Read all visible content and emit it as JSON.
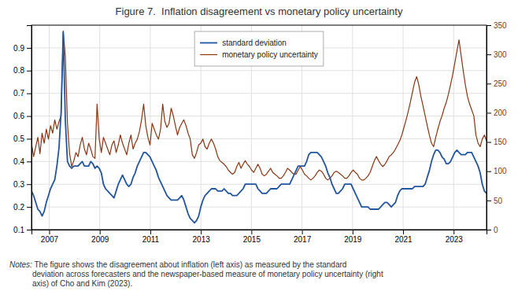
{
  "chart_data": {
    "type": "line",
    "title": "Figure 7.  Inflation disagreement vs monetary policy uncertainty",
    "x": [
      2006.3,
      2006.3837,
      2006.4674,
      2006.5512,
      2006.6349,
      2006.7186,
      2006.8023,
      2006.886,
      2006.9698,
      2007.0535,
      2007.1372,
      2007.2209,
      2007.3047,
      2007.3884,
      2007.4721,
      2007.5558,
      2007.6395,
      2007.7233,
      2007.807,
      2007.8907,
      2007.9744,
      2008.0581,
      2008.1419,
      2008.2256,
      2008.3093,
      2008.393,
      2008.4767,
      2008.5605,
      2008.6442,
      2008.7279,
      2008.8116,
      2008.8953,
      2008.9791,
      2009.0628,
      2009.1465,
      2009.2302,
      2009.314,
      2009.3977,
      2009.4814,
      2009.5651,
      2009.6488,
      2009.7326,
      2009.8163,
      2009.9,
      2009.9837,
      2010.0674,
      2010.1512,
      2010.2349,
      2010.3186,
      2010.4023,
      2010.486,
      2010.5698,
      2010.6535,
      2010.7372,
      2010.8209,
      2010.9047,
      2010.9884,
      2011.0721,
      2011.1558,
      2011.2395,
      2011.3233,
      2011.407,
      2011.4907,
      2011.5744,
      2011.6581,
      2011.7419,
      2011.8256,
      2011.9093,
      2011.993,
      2012.0767,
      2012.1605,
      2012.2442,
      2012.3279,
      2012.4116,
      2012.4953,
      2012.5791,
      2012.6628,
      2012.7465,
      2012.8302,
      2012.914,
      2012.9977,
      2013.0814,
      2013.1651,
      2013.2488,
      2013.3326,
      2013.4163,
      2013.5,
      2013.5837,
      2013.6674,
      2013.7512,
      2013.8349,
      2013.9186,
      2014.0023,
      2014.086,
      2014.1698,
      2014.2535,
      2014.3372,
      2014.4209,
      2014.5047,
      2014.5884,
      2014.6721,
      2014.7558,
      2014.8395,
      2014.9233,
      2015.007,
      2015.0907,
      2015.1744,
      2015.2581,
      2015.3419,
      2015.4256,
      2015.5093,
      2015.593,
      2015.6767,
      2015.7605,
      2015.8442,
      2015.9279,
      2016.0116,
      2016.0953,
      2016.1791,
      2016.2628,
      2016.3465,
      2016.4302,
      2016.514,
      2016.5977,
      2016.6814,
      2016.7651,
      2016.8488,
      2016.9326,
      2017.0163,
      2017.1,
      2017.1837,
      2017.2674,
      2017.3512,
      2017.4349,
      2017.5186,
      2017.6023,
      2017.686,
      2017.7698,
      2017.8535,
      2017.9372,
      2018.0209,
      2018.1047,
      2018.1884,
      2018.2721,
      2018.3558,
      2018.4395,
      2018.5233,
      2018.607,
      2018.6907,
      2018.7744,
      2018.8581,
      2018.9419,
      2019.0256,
      2019.1093,
      2019.193,
      2019.2767,
      2019.3605,
      2019.4442,
      2019.5279,
      2019.6116,
      2019.6953,
      2019.7791,
      2019.8628,
      2019.9465,
      2020.0302,
      2020.114,
      2020.1977,
      2020.2814,
      2020.3651,
      2020.4488,
      2020.5326,
      2020.6163,
      2020.7,
      2020.7837,
      2020.8674,
      2020.9512,
      2021.0349,
      2021.1186,
      2021.2023,
      2021.286,
      2021.3698,
      2021.4535,
      2021.5372,
      2021.6209,
      2021.7047,
      2021.7884,
      2021.8721,
      2021.9558,
      2022.0395,
      2022.1233,
      2022.207,
      2022.2907,
      2022.3744,
      2022.4581,
      2022.5419,
      2022.6256,
      2022.7093,
      2022.793,
      2022.8767,
      2022.9605,
      2023.0442,
      2023.1279,
      2023.2116,
      2023.2953,
      2023.3791,
      2023.4628,
      2023.5465,
      2023.6302,
      2023.714,
      2023.7977,
      2023.8814,
      2023.9651,
      2024.0488,
      2024.1326,
      2024.2163,
      2024.3
    ],
    "xlim": [
      2006.3,
      2024.3
    ],
    "xticks": [
      2007,
      2009,
      2011,
      2013,
      2015,
      2017,
      2019,
      2021,
      2023
    ],
    "ylim": [
      0.1,
      1.0
    ],
    "yticks": [
      0.1,
      0.2,
      0.3,
      0.4,
      0.5,
      0.6,
      0.7,
      0.8,
      0.9
    ],
    "y2lim": [
      0,
      350
    ],
    "y2ticks": [
      0,
      50,
      100,
      150,
      200,
      250,
      300,
      350
    ],
    "series": [
      {
        "name": "standard deviation",
        "color": "#2255a0",
        "values": [
          0.27,
          0.25,
          0.22,
          0.19,
          0.18,
          0.16,
          0.18,
          0.22,
          0.25,
          0.28,
          0.3,
          0.32,
          0.38,
          0.46,
          0.62,
          0.97,
          0.58,
          0.4,
          0.38,
          0.37,
          0.38,
          0.38,
          0.38,
          0.39,
          0.4,
          0.38,
          0.38,
          0.38,
          0.4,
          0.39,
          0.37,
          0.38,
          0.37,
          0.35,
          0.3,
          0.28,
          0.27,
          0.26,
          0.25,
          0.24,
          0.27,
          0.3,
          0.32,
          0.34,
          0.32,
          0.3,
          0.29,
          0.3,
          0.33,
          0.35,
          0.38,
          0.4,
          0.42,
          0.44,
          0.44,
          0.43,
          0.42,
          0.4,
          0.38,
          0.36,
          0.33,
          0.31,
          0.29,
          0.27,
          0.25,
          0.24,
          0.23,
          0.23,
          0.23,
          0.23,
          0.24,
          0.25,
          0.23,
          0.2,
          0.17,
          0.15,
          0.14,
          0.13,
          0.14,
          0.16,
          0.2,
          0.23,
          0.25,
          0.26,
          0.27,
          0.28,
          0.28,
          0.28,
          0.27,
          0.27,
          0.27,
          0.28,
          0.27,
          0.26,
          0.26,
          0.25,
          0.25,
          0.25,
          0.26,
          0.27,
          0.28,
          0.3,
          0.3,
          0.3,
          0.3,
          0.3,
          0.3,
          0.28,
          0.27,
          0.26,
          0.26,
          0.26,
          0.27,
          0.28,
          0.28,
          0.28,
          0.28,
          0.29,
          0.3,
          0.3,
          0.3,
          0.3,
          0.3,
          0.32,
          0.34,
          0.36,
          0.38,
          0.38,
          0.38,
          0.38,
          0.4,
          0.43,
          0.44,
          0.44,
          0.44,
          0.44,
          0.43,
          0.42,
          0.4,
          0.38,
          0.35,
          0.33,
          0.3,
          0.28,
          0.26,
          0.26,
          0.27,
          0.28,
          0.3,
          0.3,
          0.3,
          0.3,
          0.28,
          0.26,
          0.24,
          0.22,
          0.2,
          0.2,
          0.2,
          0.2,
          0.19,
          0.19,
          0.19,
          0.19,
          0.19,
          0.2,
          0.21,
          0.22,
          0.22,
          0.21,
          0.2,
          0.21,
          0.22,
          0.25,
          0.27,
          0.28,
          0.28,
          0.28,
          0.28,
          0.28,
          0.28,
          0.29,
          0.29,
          0.29,
          0.29,
          0.29,
          0.3,
          0.33,
          0.36,
          0.4,
          0.43,
          0.45,
          0.45,
          0.44,
          0.42,
          0.41,
          0.39,
          0.39,
          0.4,
          0.42,
          0.44,
          0.45,
          0.44,
          0.43,
          0.43,
          0.43,
          0.44,
          0.44,
          0.44,
          0.42,
          0.4,
          0.38,
          0.35,
          0.3,
          0.27,
          0.26
        ]
      },
      {
        "name": "monetary policy uncertainty",
        "color": "#8B3510",
        "axis": "y2",
        "values": [
          148,
          125,
          142,
          158,
          130,
          165,
          148,
          172,
          155,
          178,
          165,
          188,
          172,
          185,
          195,
          340,
          295,
          182,
          130,
          108,
          118,
          132,
          125,
          145,
          158,
          138,
          128,
          148,
          138,
          125,
          122,
          215,
          155,
          132,
          158,
          148,
          138,
          128,
          145,
          152,
          132,
          145,
          162,
          148,
          138,
          128,
          148,
          162,
          138,
          148,
          155,
          168,
          188,
          215,
          178,
          158,
          145,
          182,
          172,
          162,
          155,
          172,
          215,
          185,
          175,
          182,
          208,
          195,
          178,
          162,
          175,
          182,
          188,
          178,
          165,
          155,
          128,
          122,
          132,
          145,
          148,
          155,
          142,
          138,
          148,
          155,
          148,
          138,
          125,
          118,
          115,
          112,
          108,
          102,
          98,
          95,
          98,
          108,
          115,
          105,
          112,
          118,
          112,
          108,
          102,
          98,
          105,
          112,
          105,
          95,
          92,
          95,
          100,
          105,
          98,
          95,
          92,
          88,
          88,
          92,
          98,
          105,
          102,
          98,
          95,
          95,
          102,
          108,
          102,
          95,
          92,
          88,
          85,
          88,
          92,
          98,
          102,
          100,
          95,
          88,
          85,
          88,
          92,
          98,
          100,
          98,
          95,
          92,
          88,
          88,
          92,
          98,
          102,
          98,
          95,
          88,
          85,
          85,
          88,
          92,
          98,
          108,
          118,
          125,
          118,
          112,
          108,
          112,
          118,
          125,
          128,
          132,
          138,
          145,
          152,
          162,
          175,
          188,
          202,
          218,
          235,
          252,
          262,
          248,
          228,
          212,
          195,
          178,
          162,
          148,
          142,
          158,
          172,
          185,
          195,
          208,
          218,
          232,
          248,
          265,
          285,
          305,
          325,
          298,
          272,
          248,
          228,
          215,
          205,
          195,
          162,
          148,
          142,
          155,
          162,
          152
        ]
      }
    ],
    "grid": true,
    "legend": "top",
    "annotations": [
      "Notes:",
      " The figure shows the disagreement about inflation (left axis) as measured by the standard\ndeviation across forecasters and the newspaper-based measure of monetary policy uncertainty (right\naxis) of Cho and Kim (2023)."
    ]
  }
}
